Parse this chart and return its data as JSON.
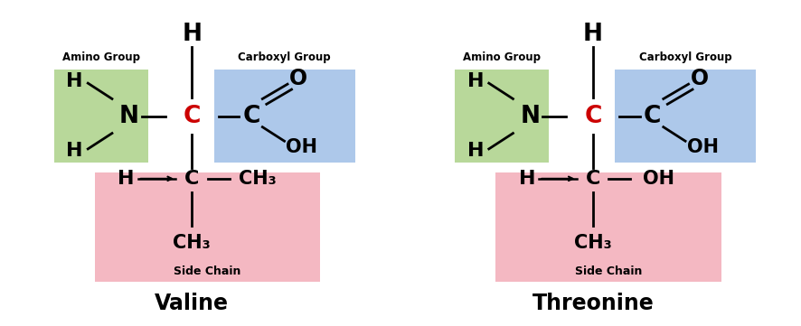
{
  "bg_color": "#ffffff",
  "green_color": "#b8d89a",
  "blue_color": "#adc8ea",
  "pink_color": "#f4b8c2",
  "text_color": "#000000",
  "red_color": "#cc0000",
  "amino_label": "Amino Group",
  "carboxyl_label": "Carboxyl Group",
  "side_chain_label": "Side Chain",
  "valine_name": "Valine",
  "threonine_name": "Threonine",
  "figsize": [
    8.87,
    3.61
  ],
  "dpi": 100
}
